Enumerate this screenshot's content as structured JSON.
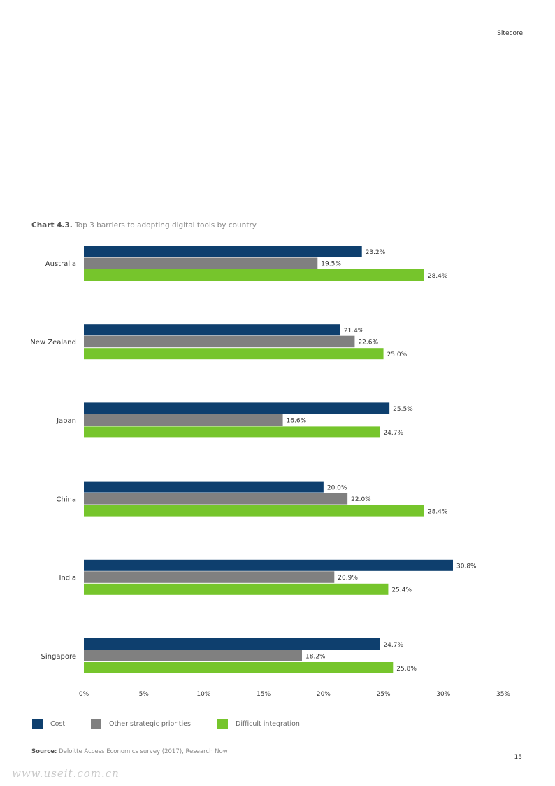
{
  "header": {
    "brand": "Sitecore"
  },
  "chart_title_prefix": "Chart 4.3.",
  "chart_title_text": "Top 3 barriers to adopting digital tools by country",
  "chart_data": {
    "type": "bar",
    "orientation": "horizontal",
    "categories": [
      "Australia",
      "New Zealand",
      "Japan",
      "China",
      "India",
      "Singapore"
    ],
    "series": [
      {
        "name": "Cost",
        "color": "#0e3f6e",
        "values": [
          23.2,
          21.4,
          25.5,
          20.0,
          30.8,
          24.7
        ]
      },
      {
        "name": "Other strategic priorities",
        "color": "#808080",
        "values": [
          19.5,
          22.6,
          16.6,
          22.0,
          20.9,
          18.2
        ]
      },
      {
        "name": "Difficult integration",
        "color": "#76c52c",
        "values": [
          28.4,
          25.0,
          24.7,
          28.4,
          25.4,
          25.8
        ]
      }
    ],
    "value_labels": [
      [
        "23.2%",
        "19.5%",
        "28.4%"
      ],
      [
        "21.4%",
        "22.6%",
        "25.0%"
      ],
      [
        "25.5%",
        "16.6%",
        "24.7%"
      ],
      [
        "20.0%",
        "22.0%",
        "28.4%"
      ],
      [
        "30.8%",
        "20.9%",
        "25.4%"
      ],
      [
        "24.7%",
        "18.2%",
        "25.8%"
      ]
    ],
    "xlim": [
      0,
      35
    ],
    "xticks": [
      0,
      5,
      10,
      15,
      20,
      25,
      30,
      35
    ],
    "xtick_labels": [
      "0%",
      "5%",
      "10%",
      "15%",
      "20%",
      "25%",
      "30%",
      "35%"
    ],
    "grid": false,
    "legend_position": "bottom"
  },
  "source_label": "Source:",
  "source_text": "Deloitte Access Economics survey (2017), Research Now",
  "page_number": "15",
  "watermark": "www.useit.com.cn"
}
